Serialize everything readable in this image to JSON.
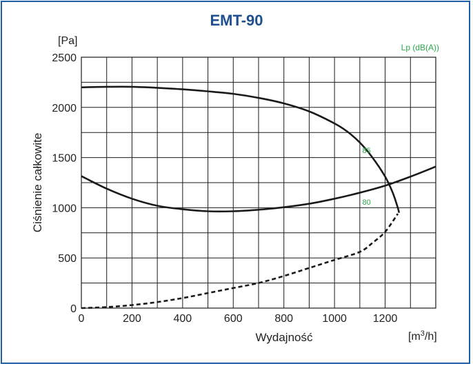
{
  "chart_data": {
    "type": "line",
    "title": "EMT-90",
    "ylabel": "Ciśnienie całkowite",
    "y_unit": "[Pa]",
    "xlabel": "Wydajność",
    "x_unit_base": "[m",
    "x_unit_sup": "3",
    "x_unit_end": "/h]",
    "legend": {
      "label": "Lp (dB(A))",
      "position": "top-right"
    },
    "xlim": [
      0,
      1400
    ],
    "ylim": [
      0,
      2500
    ],
    "x_ticks": [
      "0",
      "200",
      "400",
      "600",
      "800",
      "1000",
      "1200"
    ],
    "y_ticks": [
      "0",
      "500",
      "1000",
      "1500",
      "2000",
      "2500"
    ],
    "grid": true,
    "series": [
      {
        "style": "solid",
        "x": [
          0,
          100,
          200,
          300,
          400,
          500,
          600,
          700,
          800,
          900,
          1000,
          1050,
          1100,
          1150,
          1200,
          1230,
          1250,
          1255
        ],
        "y": [
          2200,
          2205,
          2205,
          2195,
          2180,
          2160,
          2135,
          2095,
          2040,
          1960,
          1840,
          1760,
          1650,
          1500,
          1310,
          1150,
          1000,
          950
        ]
      },
      {
        "style": "solid",
        "x": [
          0,
          100,
          200,
          300,
          400,
          500,
          600,
          700,
          800,
          900,
          1000,
          1100,
          1200,
          1300,
          1400
        ],
        "y": [
          1315,
          1190,
          1090,
          1020,
          985,
          965,
          965,
          980,
          1005,
          1040,
          1090,
          1150,
          1220,
          1310,
          1410
        ]
      },
      {
        "style": "dashed",
        "x": [
          0,
          100,
          200,
          300,
          400,
          500,
          600,
          700,
          800,
          900,
          1000,
          1100,
          1150,
          1200,
          1250
        ],
        "y": [
          0,
          10,
          30,
          60,
          100,
          150,
          200,
          250,
          320,
          400,
          480,
          560,
          650,
          760,
          940
        ]
      }
    ],
    "noise_labels": [
      {
        "text": "85",
        "x": 1110,
        "y": 1545
      },
      {
        "text": "80",
        "x": 1110,
        "y": 1030
      }
    ],
    "colors": {
      "title": "#1f4f8f",
      "frame": "#1f5ea8",
      "legend": "#2aa84a",
      "line": "#1a1a1a",
      "grid": "#1a1a1a"
    }
  }
}
